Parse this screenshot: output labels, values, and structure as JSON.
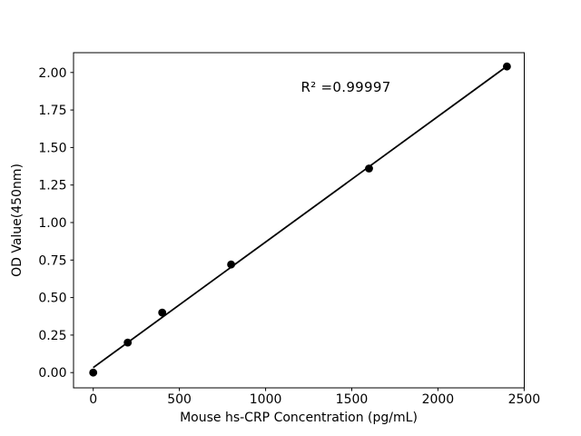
{
  "figure": {
    "background_color": "#ffffff",
    "foreground_color": "#000000"
  },
  "chart_data": {
    "type": "scatter",
    "title": "",
    "xlabel": "Mouse hs-CRP Concentration (pg/mL)",
    "ylabel": "OD Value(450nm)",
    "annotation": "R² =0.99997",
    "r_squared": 0.99997,
    "x": [
      0,
      200,
      400,
      800,
      1600,
      2400
    ],
    "y": [
      0.0,
      0.2,
      0.4,
      0.72,
      1.36,
      2.04
    ],
    "fit_line": {
      "x": [
        0,
        2400
      ],
      "y": [
        0.033,
        2.042
      ]
    },
    "x_ticks": [
      0,
      500,
      1000,
      1500,
      2000,
      2500
    ],
    "x_tick_labels": [
      "0",
      "500",
      "1000",
      "1500",
      "2000",
      "2500"
    ],
    "y_ticks": [
      0.0,
      0.25,
      0.5,
      0.75,
      1.0,
      1.25,
      1.5,
      1.75,
      2.0
    ],
    "y_tick_labels": [
      "0.00",
      "0.25",
      "0.50",
      "0.75",
      "1.00",
      "1.25",
      "1.50",
      "1.75",
      "2.00"
    ],
    "xlim": [
      -114.3,
      2500.6
    ],
    "ylim": [
      -0.102,
      2.132
    ],
    "grid": false,
    "legend": null,
    "marker": "circle",
    "marker_color": "#000000",
    "line_color": "#000000",
    "axis_color": "#000000"
  }
}
